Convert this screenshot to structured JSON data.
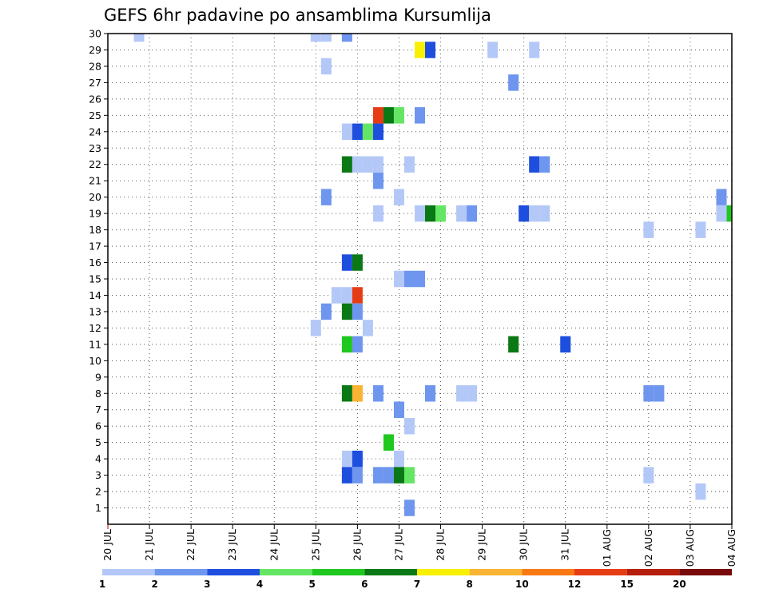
{
  "chart_data": {
    "type": "heatmap",
    "title": "GEFS 6hr padavine po ansamblima Kursumlija",
    "x_tick_labels": [
      "20 JUL",
      "21 JUL",
      "22 JUL",
      "23 JUL",
      "24 JUL",
      "25 JUL",
      "26 JUL",
      "27 JUL",
      "28 JUL",
      "29 JUL",
      "30 JUL",
      "31 JUL",
      "01 AUG",
      "02 AUG",
      "03 AUG",
      "04 AUG"
    ],
    "y_tick_labels": [
      "1",
      "2",
      "3",
      "4",
      "5",
      "6",
      "7",
      "8",
      "9",
      "10",
      "11",
      "12",
      "13",
      "14",
      "15",
      "16",
      "17",
      "18",
      "19",
      "20",
      "21",
      "22",
      "23",
      "24",
      "25",
      "26",
      "27",
      "28",
      "29",
      "30"
    ],
    "xlim": [
      0,
      15
    ],
    "ylim": [
      0,
      30
    ],
    "step_days": 0.25,
    "grid": true,
    "legend_placement": "bottom",
    "legend": {
      "labels": [
        "1",
        "2",
        "3",
        "4",
        "5",
        "6",
        "7",
        "8",
        "10",
        "12",
        "15",
        "20"
      ],
      "colors": [
        "#b4c8f8",
        "#6e96ee",
        "#1e4ede",
        "#64e664",
        "#1ec81e",
        "#0a7814",
        "#f8f000",
        "#f8b432",
        "#f87814",
        "#e63c14",
        "#b41e0a",
        "#780a0a"
      ]
    },
    "cells": [
      {
        "x": 0.75,
        "y": 30,
        "c": 0
      },
      {
        "x": 5.0,
        "y": 30,
        "c": 0
      },
      {
        "x": 5.25,
        "y": 30,
        "c": 0
      },
      {
        "x": 5.75,
        "y": 30,
        "c": 1
      },
      {
        "x": 7.5,
        "y": 29,
        "c": 6
      },
      {
        "x": 7.75,
        "y": 29,
        "c": 2
      },
      {
        "x": 9.25,
        "y": 29,
        "c": 0
      },
      {
        "x": 10.25,
        "y": 29,
        "c": 0
      },
      {
        "x": 5.25,
        "y": 28,
        "c": 0
      },
      {
        "x": 9.75,
        "y": 27,
        "c": 1
      },
      {
        "x": 6.5,
        "y": 25,
        "c": 9
      },
      {
        "x": 6.75,
        "y": 25,
        "c": 5
      },
      {
        "x": 7.0,
        "y": 25,
        "c": 3
      },
      {
        "x": 7.5,
        "y": 25,
        "c": 1
      },
      {
        "x": 5.75,
        "y": 24,
        "c": 0
      },
      {
        "x": 6.0,
        "y": 24,
        "c": 2
      },
      {
        "x": 6.25,
        "y": 24,
        "c": 3
      },
      {
        "x": 6.5,
        "y": 24,
        "c": 2
      },
      {
        "x": 5.75,
        "y": 22,
        "c": 5
      },
      {
        "x": 6.0,
        "y": 22,
        "c": 0
      },
      {
        "x": 6.25,
        "y": 22,
        "c": 0
      },
      {
        "x": 6.5,
        "y": 22,
        "c": 0
      },
      {
        "x": 7.25,
        "y": 22,
        "c": 0
      },
      {
        "x": 10.25,
        "y": 22,
        "c": 2
      },
      {
        "x": 10.5,
        "y": 22,
        "c": 1
      },
      {
        "x": 6.5,
        "y": 21,
        "c": 1
      },
      {
        "x": 5.25,
        "y": 20,
        "c": 1
      },
      {
        "x": 7.0,
        "y": 20,
        "c": 0
      },
      {
        "x": 14.75,
        "y": 20,
        "c": 1
      },
      {
        "x": 6.5,
        "y": 19,
        "c": 0
      },
      {
        "x": 7.5,
        "y": 19,
        "c": 0
      },
      {
        "x": 7.75,
        "y": 19,
        "c": 5
      },
      {
        "x": 8.0,
        "y": 19,
        "c": 3
      },
      {
        "x": 8.5,
        "y": 19,
        "c": 0
      },
      {
        "x": 8.75,
        "y": 19,
        "c": 1
      },
      {
        "x": 10.0,
        "y": 19,
        "c": 2
      },
      {
        "x": 10.25,
        "y": 19,
        "c": 0
      },
      {
        "x": 10.5,
        "y": 19,
        "c": 0
      },
      {
        "x": 14.75,
        "y": 19,
        "c": 0
      },
      {
        "x": 15.0,
        "y": 19,
        "c": 4
      },
      {
        "x": 13.0,
        "y": 18,
        "c": 0
      },
      {
        "x": 14.25,
        "y": 18,
        "c": 0
      },
      {
        "x": 5.75,
        "y": 16,
        "c": 2
      },
      {
        "x": 6.0,
        "y": 16,
        "c": 5
      },
      {
        "x": 7.0,
        "y": 15,
        "c": 0
      },
      {
        "x": 7.25,
        "y": 15,
        "c": 1
      },
      {
        "x": 7.5,
        "y": 15,
        "c": 1
      },
      {
        "x": 5.5,
        "y": 14,
        "c": 0
      },
      {
        "x": 5.75,
        "y": 14,
        "c": 0
      },
      {
        "x": 6.0,
        "y": 14,
        "c": 9
      },
      {
        "x": 5.25,
        "y": 13,
        "c": 1
      },
      {
        "x": 5.75,
        "y": 13,
        "c": 5
      },
      {
        "x": 6.0,
        "y": 13,
        "c": 1
      },
      {
        "x": 5.0,
        "y": 12,
        "c": 0
      },
      {
        "x": 6.25,
        "y": 12,
        "c": 0
      },
      {
        "x": 5.75,
        "y": 11,
        "c": 4
      },
      {
        "x": 6.0,
        "y": 11,
        "c": 1
      },
      {
        "x": 9.75,
        "y": 11,
        "c": 5
      },
      {
        "x": 11.0,
        "y": 11,
        "c": 2
      },
      {
        "x": 5.75,
        "y": 8,
        "c": 5
      },
      {
        "x": 6.0,
        "y": 8,
        "c": 7
      },
      {
        "x": 6.5,
        "y": 8,
        "c": 1
      },
      {
        "x": 7.75,
        "y": 8,
        "c": 1
      },
      {
        "x": 8.5,
        "y": 8,
        "c": 0
      },
      {
        "x": 8.75,
        "y": 8,
        "c": 0
      },
      {
        "x": 13.0,
        "y": 8,
        "c": 1
      },
      {
        "x": 13.25,
        "y": 8,
        "c": 1
      },
      {
        "x": 7.0,
        "y": 7,
        "c": 1
      },
      {
        "x": 7.25,
        "y": 6,
        "c": 0
      },
      {
        "x": 6.75,
        "y": 5,
        "c": 4
      },
      {
        "x": 5.75,
        "y": 4,
        "c": 0
      },
      {
        "x": 6.0,
        "y": 4,
        "c": 2
      },
      {
        "x": 7.0,
        "y": 4,
        "c": 0
      },
      {
        "x": 5.75,
        "y": 3,
        "c": 2
      },
      {
        "x": 6.0,
        "y": 3,
        "c": 1
      },
      {
        "x": 6.5,
        "y": 3,
        "c": 1
      },
      {
        "x": 6.75,
        "y": 3,
        "c": 1
      },
      {
        "x": 7.0,
        "y": 3,
        "c": 5
      },
      {
        "x": 7.25,
        "y": 3,
        "c": 3
      },
      {
        "x": 13.0,
        "y": 3,
        "c": 0
      },
      {
        "x": 14.25,
        "y": 2,
        "c": 0
      },
      {
        "x": 7.25,
        "y": 1,
        "c": 1
      }
    ]
  }
}
